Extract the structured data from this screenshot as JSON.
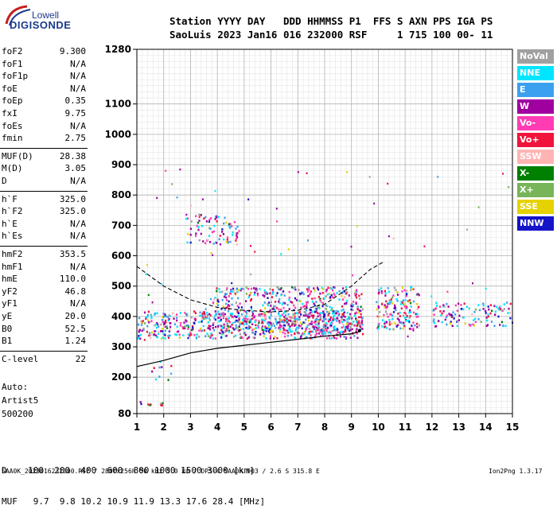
{
  "logo": {
    "top": "Lowell",
    "bottom": "DIGISONDE"
  },
  "header": {
    "line1": "Station YYYY DAY   DDD HHMMSS P1  FFS S AXN PPS IGA PS",
    "line2": "SaoLuis 2023 Jan16 016 232000 RSF     1 715 100 00- 11"
  },
  "params": [
    {
      "name": "foF2",
      "value": "9.300"
    },
    {
      "name": "foF1",
      "value": "N/A"
    },
    {
      "name": "foF1p",
      "value": "N/A"
    },
    {
      "name": "foE",
      "value": "N/A"
    },
    {
      "name": "foEp",
      "value": "0.35"
    },
    {
      "name": "fxI",
      "value": "9.75"
    },
    {
      "name": "foEs",
      "value": "N/A"
    },
    {
      "name": "fmin",
      "value": "2.75"
    },
    {
      "name": "MUF(D)",
      "value": "28.38"
    },
    {
      "name": "M(D)",
      "value": "3.05"
    },
    {
      "name": "D",
      "value": "N/A"
    },
    {
      "name": "h`F",
      "value": "325.0"
    },
    {
      "name": "h`F2",
      "value": "325.0"
    },
    {
      "name": "h`E",
      "value": "N/A"
    },
    {
      "name": "h`Es",
      "value": "N/A"
    },
    {
      "name": "hmF2",
      "value": "353.5"
    },
    {
      "name": "hmF1",
      "value": "N/A"
    },
    {
      "name": "hmE",
      "value": "110.0"
    },
    {
      "name": "yF2",
      "value": "46.8"
    },
    {
      "name": "yF1",
      "value": "N/A"
    },
    {
      "name": "yE",
      "value": "20.0"
    },
    {
      "name": "B0",
      "value": "52.5"
    },
    {
      "name": "B1",
      "value": "1.24"
    },
    {
      "name": "C-level",
      "value": "22"
    }
  ],
  "scaling": {
    "line1": "Auto:",
    "line2": "Artist5",
    "line3": "500200"
  },
  "legend": [
    {
      "label": "NoVal",
      "color": "#a0a0a0"
    },
    {
      "label": "NNE",
      "color": "#00e5ff"
    },
    {
      "label": "E",
      "color": "#3ca0f0"
    },
    {
      "label": "W",
      "color": "#a000a0"
    },
    {
      "label": "Vo-",
      "color": "#ff3cb4"
    },
    {
      "label": "Vo+",
      "color": "#f0143c"
    },
    {
      "label": "SSW",
      "color": "#ffb4b4"
    },
    {
      "label": "X-",
      "color": "#008000"
    },
    {
      "label": "X+",
      "color": "#78b45a"
    },
    {
      "label": "SSE",
      "color": "#e6d200"
    },
    {
      "label": "NNW",
      "color": "#1414c8"
    }
  ],
  "bottom_table": {
    "d_row": "D    100  200  400  600  800 1000 1500 3000 [km]",
    "muf_row": "MUF   9.7  9.8 10.2 10.9 11.9 13.3 17.6 28.4 [MHz]"
  },
  "footer": "SAA0K_2023016232000.RSF / 280fx256h 50 kHz 5.0 km / DPS-4 SAA0K 903 / 2.6 S 315.8 E",
  "version": "Ion2Png 1.3.17",
  "chart_data": {
    "type": "scatter",
    "xlim": [
      1,
      15
    ],
    "ylim": [
      80,
      1280
    ],
    "x_ticks": [
      1,
      2,
      3,
      4,
      5,
      6,
      7,
      8,
      9,
      10,
      11,
      12,
      13,
      14,
      15
    ],
    "y_ticks": [
      80,
      200,
      300,
      400,
      500,
      600,
      700,
      800,
      900,
      1000,
      1100,
      1280
    ],
    "grid": true,
    "clusters": [
      {
        "x0": 1.0,
        "x1": 9.4,
        "y0": 330,
        "y1": 420,
        "density": 0.9
      },
      {
        "x0": 3.8,
        "x1": 9.4,
        "y0": 345,
        "y1": 500,
        "density": 0.7
      },
      {
        "x0": 9.9,
        "x1": 11.5,
        "y0": 360,
        "y1": 500,
        "density": 0.8
      },
      {
        "x0": 12.0,
        "x1": 14.9,
        "y0": 370,
        "y1": 450,
        "density": 0.55
      },
      {
        "x0": 2.8,
        "x1": 4.8,
        "y0": 640,
        "y1": 740,
        "density": 0.45
      },
      {
        "x0": 1.1,
        "x1": 2.0,
        "y0": 110,
        "y1": 122,
        "density": 0.95
      },
      {
        "x0": 1.5,
        "x1": 2.3,
        "y0": 190,
        "y1": 260,
        "density": 0.2
      }
    ],
    "virtual_height_curve": [
      {
        "x": 1.0,
        "y": 235
      },
      {
        "x": 2.0,
        "y": 255
      },
      {
        "x": 3.0,
        "y": 280
      },
      {
        "x": 4.0,
        "y": 295
      },
      {
        "x": 5.0,
        "y": 305
      },
      {
        "x": 6.0,
        "y": 315
      },
      {
        "x": 7.0,
        "y": 325
      },
      {
        "x": 8.0,
        "y": 335
      },
      {
        "x": 9.0,
        "y": 343
      },
      {
        "x": 9.3,
        "y": 350
      }
    ],
    "true_height_curve": [
      {
        "x": 1.0,
        "y": 565
      },
      {
        "x": 2.0,
        "y": 500
      },
      {
        "x": 3.0,
        "y": 455
      },
      {
        "x": 4.0,
        "y": 430
      },
      {
        "x": 5.0,
        "y": 420
      },
      {
        "x": 6.0,
        "y": 415
      },
      {
        "x": 7.0,
        "y": 420
      },
      {
        "x": 8.0,
        "y": 440
      },
      {
        "x": 9.0,
        "y": 500
      },
      {
        "x": 9.7,
        "y": 555
      },
      {
        "x": 10.2,
        "y": 580
      }
    ],
    "critical_marker": {
      "x": 9.3,
      "y": 353.5
    }
  }
}
